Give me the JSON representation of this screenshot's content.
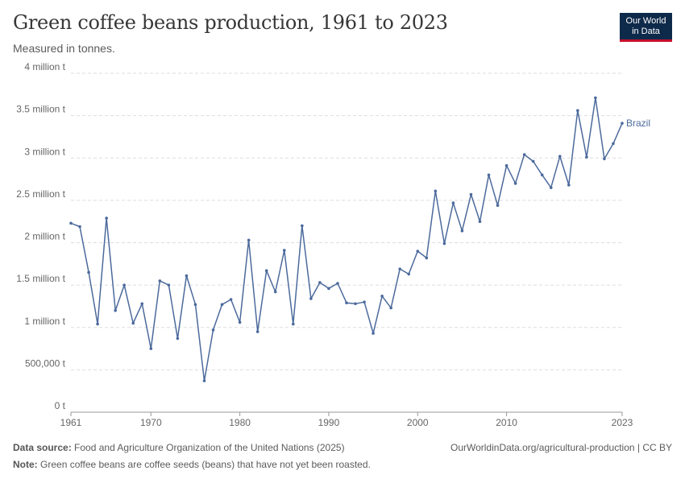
{
  "header": {
    "title": "Green coffee beans production, 1961 to 2023",
    "subtitle": "Measured in tonnes.",
    "logo_line1": "Our World",
    "logo_line2": "in Data"
  },
  "footer": {
    "source_label": "Data source:",
    "source_text": "Food and Agriculture Organization of the United Nations (2025)",
    "note_label": "Note:",
    "note_text": "Green coffee beans are coffee seeds (beans) that have not yet been roasted.",
    "credit": "OurWorldinData.org/agricultural-production | CC BY"
  },
  "colors": {
    "series": "#4c6a9c",
    "grid": "#dddddd",
    "axis": "#999999"
  },
  "chart_data": {
    "type": "line",
    "title": "Green coffee beans production, 1961 to 2023",
    "subtitle": "Measured in tonnes.",
    "xlim": [
      1961,
      2023
    ],
    "ylim": [
      0,
      4000000
    ],
    "x_ticks": [
      {
        "value": 1961,
        "label": "1961"
      },
      {
        "value": 1970,
        "label": "1970"
      },
      {
        "value": 1980,
        "label": "1980"
      },
      {
        "value": 1990,
        "label": "1990"
      },
      {
        "value": 2000,
        "label": "2000"
      },
      {
        "value": 2010,
        "label": "2010"
      },
      {
        "value": 2023,
        "label": "2023"
      }
    ],
    "y_ticks": [
      {
        "value": 0,
        "label": "0 t"
      },
      {
        "value": 500000,
        "label": "500,000 t"
      },
      {
        "value": 1000000,
        "label": "1 million t"
      },
      {
        "value": 1500000,
        "label": "1.5 million t"
      },
      {
        "value": 2000000,
        "label": "2 million t"
      },
      {
        "value": 2500000,
        "label": "2.5 million t"
      },
      {
        "value": 3000000,
        "label": "3 million t"
      },
      {
        "value": 3500000,
        "label": "3.5 million t"
      },
      {
        "value": 4000000,
        "label": "4 million t"
      }
    ],
    "grid": true,
    "series": [
      {
        "name": "Brazil",
        "x": [
          1961,
          1962,
          1963,
          1964,
          1965,
          1966,
          1967,
          1968,
          1969,
          1970,
          1971,
          1972,
          1973,
          1974,
          1975,
          1976,
          1977,
          1978,
          1979,
          1980,
          1981,
          1982,
          1983,
          1984,
          1985,
          1986,
          1987,
          1988,
          1989,
          1990,
          1991,
          1992,
          1993,
          1994,
          1995,
          1996,
          1997,
          1998,
          1999,
          2000,
          2001,
          2002,
          2003,
          2004,
          2005,
          2006,
          2007,
          2008,
          2009,
          2010,
          2011,
          2012,
          2013,
          2014,
          2015,
          2016,
          2017,
          2018,
          2019,
          2020,
          2021,
          2022,
          2023
        ],
        "values": [
          2230000,
          2190000,
          1650000,
          1040000,
          2290000,
          1200000,
          1500000,
          1050000,
          1280000,
          750000,
          1550000,
          1500000,
          870000,
          1610000,
          1270000,
          370000,
          970000,
          1270000,
          1330000,
          1060000,
          2030000,
          950000,
          1670000,
          1420000,
          1910000,
          1040000,
          2200000,
          1340000,
          1530000,
          1460000,
          1520000,
          1290000,
          1280000,
          1300000,
          930000,
          1370000,
          1230000,
          1690000,
          1630000,
          1900000,
          1820000,
          2610000,
          1990000,
          2470000,
          2140000,
          2570000,
          2250000,
          2800000,
          2440000,
          2910000,
          2700000,
          3040000,
          2960000,
          2800000,
          2650000,
          3020000,
          2680000,
          3560000,
          3010000,
          3710000,
          2990000,
          3170000,
          3410000
        ]
      }
    ]
  }
}
